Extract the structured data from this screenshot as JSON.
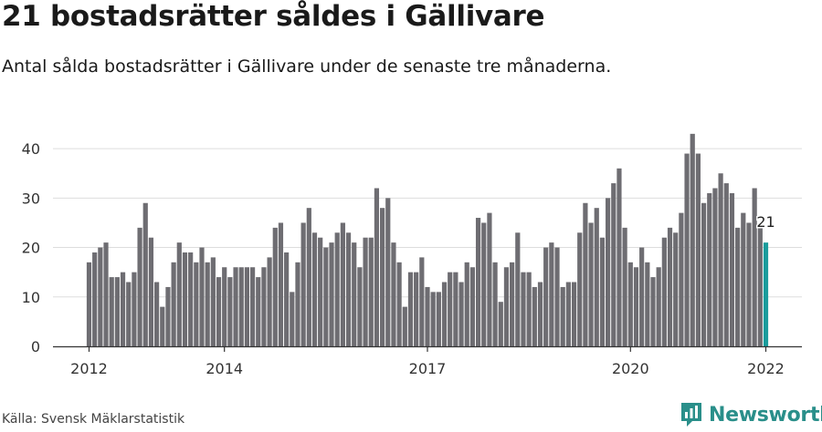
{
  "title": "21 bostadsrätter såldes i Gällivare",
  "subtitle": "Antal sålda bostadsrätter i Gällivare under de senaste tre månaderna.",
  "source": "Källa: Svensk Mäklarstatistik",
  "brand": {
    "name": "Newsworthy",
    "icon": "newsworthy-logo-icon",
    "color": "#2a8f8a"
  },
  "colors": {
    "bar": "#6e6d72",
    "highlight": "#1a9c9c",
    "grid": "#dddddd"
  },
  "chart_data": {
    "type": "bar",
    "x_start": "2012-01",
    "x_end": "2022-01",
    "ylim": [
      0,
      45
    ],
    "yticks": [
      0,
      10,
      20,
      30,
      40
    ],
    "xticks": [
      {
        "label": "2012",
        "index": 0
      },
      {
        "label": "2014",
        "index": 24
      },
      {
        "label": "2017",
        "index": 60
      },
      {
        "label": "2020",
        "index": 96
      },
      {
        "label": "2022",
        "index": 120
      }
    ],
    "values": [
      17,
      19,
      20,
      21,
      14,
      14,
      15,
      13,
      15,
      24,
      29,
      22,
      13,
      8,
      12,
      17,
      21,
      19,
      19,
      17,
      20,
      17,
      18,
      14,
      16,
      14,
      16,
      16,
      16,
      16,
      14,
      16,
      18,
      24,
      25,
      19,
      11,
      17,
      25,
      28,
      23,
      22,
      20,
      21,
      23,
      25,
      23,
      21,
      16,
      22,
      22,
      32,
      28,
      30,
      21,
      17,
      8,
      15,
      15,
      18,
      12,
      11,
      11,
      13,
      15,
      15,
      13,
      17,
      16,
      26,
      25,
      27,
      17,
      9,
      16,
      17,
      23,
      15,
      15,
      12,
      13,
      20,
      21,
      20,
      12,
      13,
      13,
      23,
      29,
      25,
      28,
      22,
      30,
      33,
      36,
      24,
      17,
      16,
      20,
      17,
      14,
      16,
      22,
      24,
      23,
      27,
      39,
      43,
      39,
      29,
      31,
      32,
      35,
      33,
      31,
      24,
      27,
      25,
      32,
      24,
      21
    ],
    "highlight_last": true,
    "last_label": "21",
    "xlabel": "",
    "ylabel": "",
    "grid": true
  }
}
